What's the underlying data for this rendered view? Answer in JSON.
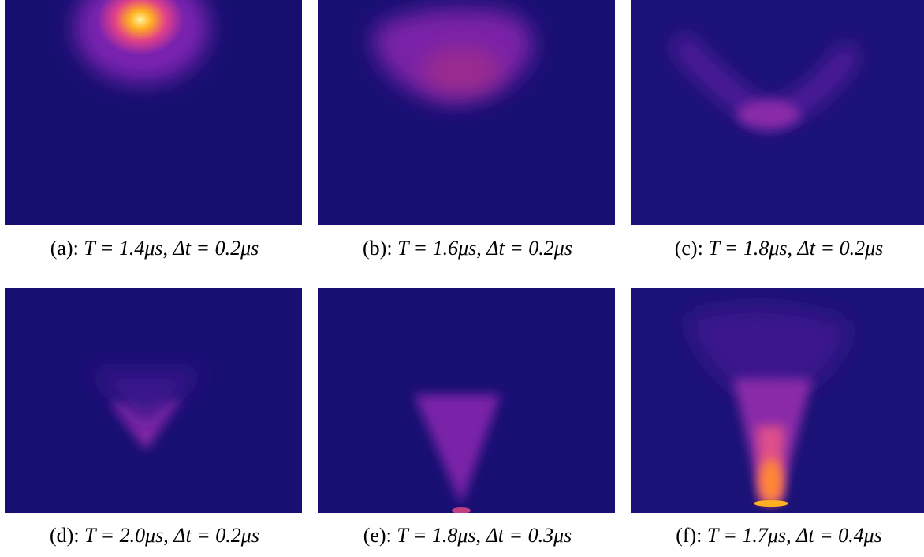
{
  "panels": [
    {
      "label": "(a):",
      "time": "T = 1.4μs",
      "width": "Δt = 0.2μs"
    },
    {
      "label": "(b):",
      "time": "T = 1.6μs",
      "width": "Δt = 0.2μs"
    },
    {
      "label": "(c):",
      "time": "T = 1.8μs",
      "width": "Δt = 0.2μs"
    },
    {
      "label": "(d):",
      "time": "T = 2.0μs",
      "width": "Δt = 0.2μs"
    },
    {
      "label": "(e):",
      "time": "T = 1.8μs",
      "width": "Δt = 0.3μs"
    },
    {
      "label": "(f):",
      "time": "T = 1.7μs",
      "width": "Δt = 0.4μs"
    }
  ]
}
